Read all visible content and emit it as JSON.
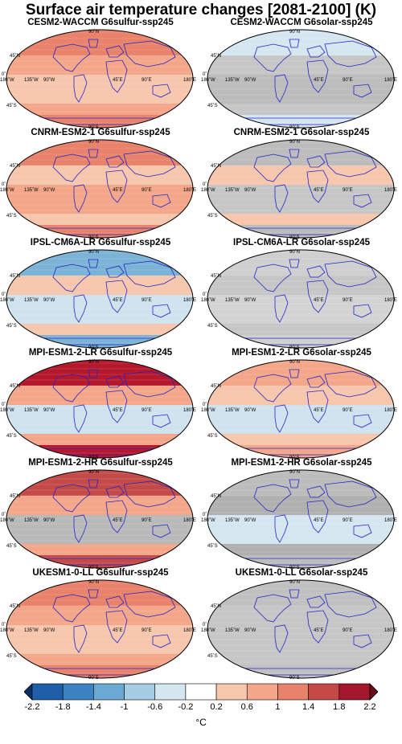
{
  "title": "Surface air temperature changes [2081-2100] (K)",
  "panels": [
    {
      "title": "CESM2-WACCM G6sulfur-ssp245",
      "ll": "#f6c6ad",
      "ml": "#f3a689",
      "hl": "#e8826a"
    },
    {
      "title": "CESM2-WACCM G6solar-ssp245",
      "ll": "#bcbcbc",
      "ml": "#c6c6c6",
      "hl": "#d5e6f0"
    },
    {
      "title": "CNRM-ESM2-1 G6sulfur-ssp245",
      "ll": "#f3a689",
      "ml": "#f6c6ad",
      "hl": "#e8826a"
    },
    {
      "title": "CNRM-ESM2-1 G6solar-ssp245",
      "ll": "#c6c6c6",
      "ml": "#f6c6ad",
      "hl": "#bcbcbc"
    },
    {
      "title": "IPSL-CM6A-LR G6sulfur-ssp245",
      "ll": "#cfe3ef",
      "ml": "#f6c6ad",
      "hl": "#7ab3d6"
    },
    {
      "title": "IPSL-CM6A-LR G6solar-ssp245",
      "ll": "#d3d3d3",
      "ml": "#c6c6c6",
      "hl": "#cfcfcf"
    },
    {
      "title": "MPI-ESM1-2-LR G6sulfur-ssp245",
      "ll": "#cfe3ef",
      "ml": "#f3a689",
      "hl": "#b5172b"
    },
    {
      "title": "MPI-ESM1-2-LR G6solar-ssp245",
      "ll": "#cfe3ef",
      "ml": "#f6c6ad",
      "hl": "#f3a689"
    },
    {
      "title": "MPI-ESM1-2-HR G6sulfur-ssp245",
      "ll": "#b9b9b9",
      "ml": "#f3a689",
      "hl": "#c44a48"
    },
    {
      "title": "MPI-ESM1-2-HR G6solar-ssp245",
      "ll": "#d5e6f0",
      "ml": "#b0b0b0",
      "hl": "#bcbcbc"
    },
    {
      "title": "UKESM1-0-LL G6sulfur-ssp245",
      "ll": "#f6c6ad",
      "ml": "#f3a689",
      "hl": "#e8826a"
    },
    {
      "title": "UKESM1-0-LL G6solar-ssp245",
      "ll": "#c6c6c6",
      "ml": "#c6c6c6",
      "hl": "#c0c0c0"
    }
  ],
  "axis_labels": {
    "lat_90n": "90˚N",
    "lat_45n": "45˚N",
    "lat_0": "0˚",
    "lat_45s": "45˚S",
    "lat_90s": "90˚S",
    "lon_180w": "180˚W",
    "lon_135w": "135˚W",
    "lon_90w": "90˚W",
    "lon_45e": "45˚E",
    "lon_90e": "90˚E",
    "lon_180e": "180˚E"
  },
  "colorbar": {
    "ticks": [
      "-2.2",
      "-1.8",
      "-1.4",
      "-1",
      "-0.6",
      "-0.2",
      "0.2",
      "0.6",
      "1",
      "1.4",
      "1.8",
      "2.2"
    ],
    "unit": "°C",
    "colors": [
      "#08306b",
      "#1f5ea8",
      "#3a82c0",
      "#6aa9d4",
      "#a6cde3",
      "#d5e6f0",
      "#ffffff",
      "#f6c6ad",
      "#f3a689",
      "#e8826a",
      "#c44a48",
      "#a3162b",
      "#6a0a1c"
    ]
  }
}
